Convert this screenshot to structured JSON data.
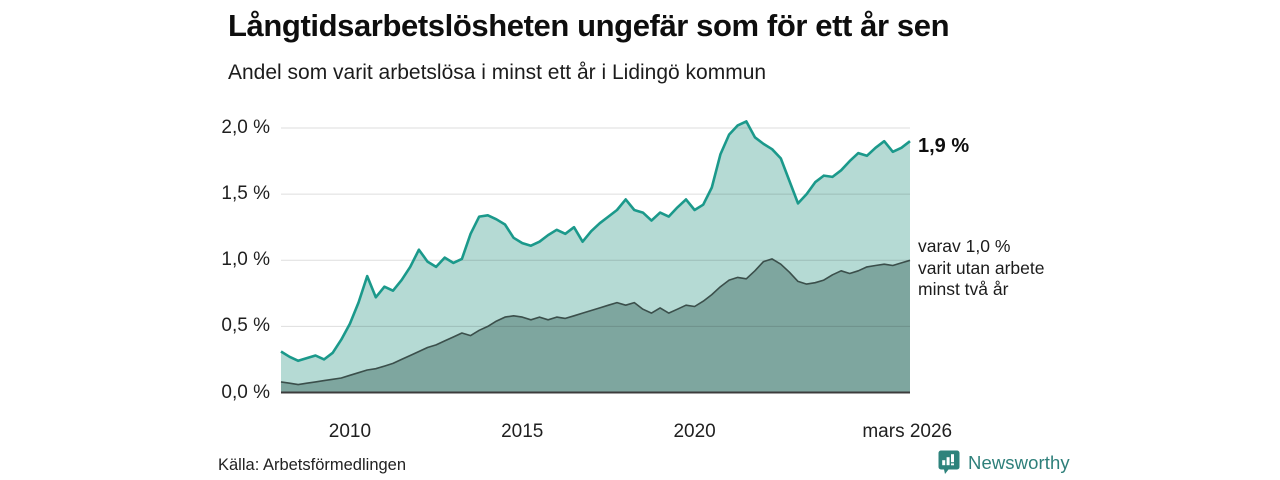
{
  "header": {
    "title": "Långtidsarbetslösheten ungefär som för ett år sen",
    "subtitle": "Andel som varit arbetslösa i minst ett år i Lidingö kommun"
  },
  "chart_data": {
    "type": "area",
    "title": "Långtidsarbetslösheten ungefär som för ett år sen",
    "subtitle": "Andel som varit arbetslösa i minst ett år i Lidingö kommun",
    "unit": "%",
    "grid": "horizontal",
    "xlim": [
      2008.0,
      2026.25
    ],
    "ylim": [
      0,
      2.05
    ],
    "y_ticks": [
      {
        "value": 0.0,
        "label": "0,0 %"
      },
      {
        "value": 0.5,
        "label": "0,5 %"
      },
      {
        "value": 1.0,
        "label": "1,0 %"
      },
      {
        "value": 1.5,
        "label": "1,5 %"
      },
      {
        "value": 2.0,
        "label": "2,0 %"
      }
    ],
    "x_ticks": [
      {
        "value": 2010,
        "label": "2010"
      },
      {
        "value": 2015,
        "label": "2015"
      },
      {
        "value": 2020,
        "label": "2020"
      },
      {
        "value": 2026.17,
        "label": "mars 2026"
      }
    ],
    "x": [
      2008.0,
      2008.25,
      2008.5,
      2008.75,
      2009.0,
      2009.25,
      2009.5,
      2009.75,
      2010.0,
      2010.25,
      2010.5,
      2010.75,
      2011.0,
      2011.25,
      2011.5,
      2011.75,
      2012.0,
      2012.25,
      2012.5,
      2012.75,
      2013.0,
      2013.25,
      2013.5,
      2013.75,
      2014.0,
      2014.25,
      2014.5,
      2014.75,
      2015.0,
      2015.25,
      2015.5,
      2015.75,
      2016.0,
      2016.25,
      2016.5,
      2016.75,
      2017.0,
      2017.25,
      2017.5,
      2017.75,
      2018.0,
      2018.25,
      2018.5,
      2018.75,
      2019.0,
      2019.25,
      2019.5,
      2019.75,
      2020.0,
      2020.25,
      2020.5,
      2020.75,
      2021.0,
      2021.25,
      2021.5,
      2021.75,
      2022.0,
      2022.25,
      2022.5,
      2022.75,
      2023.0,
      2023.25,
      2023.5,
      2023.75,
      2024.0,
      2024.25,
      2024.5,
      2024.75,
      2025.0,
      2025.25,
      2025.5,
      2025.75,
      2026.0,
      2026.25
    ],
    "series": [
      {
        "name": "Andel som varit arbetslösa minst ett år",
        "line_color": "#1b998b",
        "fill_color": "#b5dad4",
        "line_width": 2.6,
        "values": [
          0.31,
          0.27,
          0.24,
          0.26,
          0.28,
          0.25,
          0.3,
          0.4,
          0.52,
          0.68,
          0.88,
          0.72,
          0.8,
          0.77,
          0.85,
          0.95,
          1.08,
          0.99,
          0.95,
          1.02,
          0.98,
          1.01,
          1.2,
          1.33,
          1.34,
          1.31,
          1.27,
          1.17,
          1.13,
          1.11,
          1.14,
          1.19,
          1.23,
          1.2,
          1.25,
          1.14,
          1.22,
          1.28,
          1.33,
          1.38,
          1.46,
          1.38,
          1.36,
          1.3,
          1.36,
          1.33,
          1.4,
          1.46,
          1.38,
          1.42,
          1.55,
          1.8,
          1.95,
          2.02,
          2.05,
          1.93,
          1.88,
          1.84,
          1.77,
          1.6,
          1.43,
          1.5,
          1.59,
          1.64,
          1.63,
          1.68,
          1.75,
          1.81,
          1.79,
          1.85,
          1.9,
          1.82,
          1.85,
          1.9
        ]
      },
      {
        "name": "varav utan arbete minst två år",
        "line_color": "#3b4f4b",
        "fill_color": "#7ea69f",
        "line_width": 1.6,
        "values": [
          0.08,
          0.07,
          0.06,
          0.07,
          0.08,
          0.09,
          0.1,
          0.11,
          0.13,
          0.15,
          0.17,
          0.18,
          0.2,
          0.22,
          0.25,
          0.28,
          0.31,
          0.34,
          0.36,
          0.39,
          0.42,
          0.45,
          0.43,
          0.47,
          0.5,
          0.54,
          0.57,
          0.58,
          0.57,
          0.55,
          0.57,
          0.55,
          0.57,
          0.56,
          0.58,
          0.6,
          0.62,
          0.64,
          0.66,
          0.68,
          0.66,
          0.68,
          0.63,
          0.6,
          0.64,
          0.6,
          0.63,
          0.66,
          0.65,
          0.69,
          0.74,
          0.8,
          0.85,
          0.87,
          0.86,
          0.92,
          0.99,
          1.01,
          0.97,
          0.91,
          0.84,
          0.82,
          0.83,
          0.85,
          0.89,
          0.92,
          0.9,
          0.92,
          0.95,
          0.96,
          0.97,
          0.96,
          0.98,
          1.0
        ]
      }
    ],
    "annotations": {
      "latest_total": "1,9 %",
      "latest_sub_lines": [
        "varav 1,0 %",
        "varit utan arbete",
        "minst två år"
      ]
    },
    "colors": {
      "grid": "#d6d6d6",
      "axis": "#3c3c3c",
      "accent_teal": "#1b998b",
      "brand_teal": "#2e837c"
    }
  },
  "footer": {
    "source": "Källa: Arbetsförmedlingen",
    "logo_text": "Newsworthy"
  }
}
